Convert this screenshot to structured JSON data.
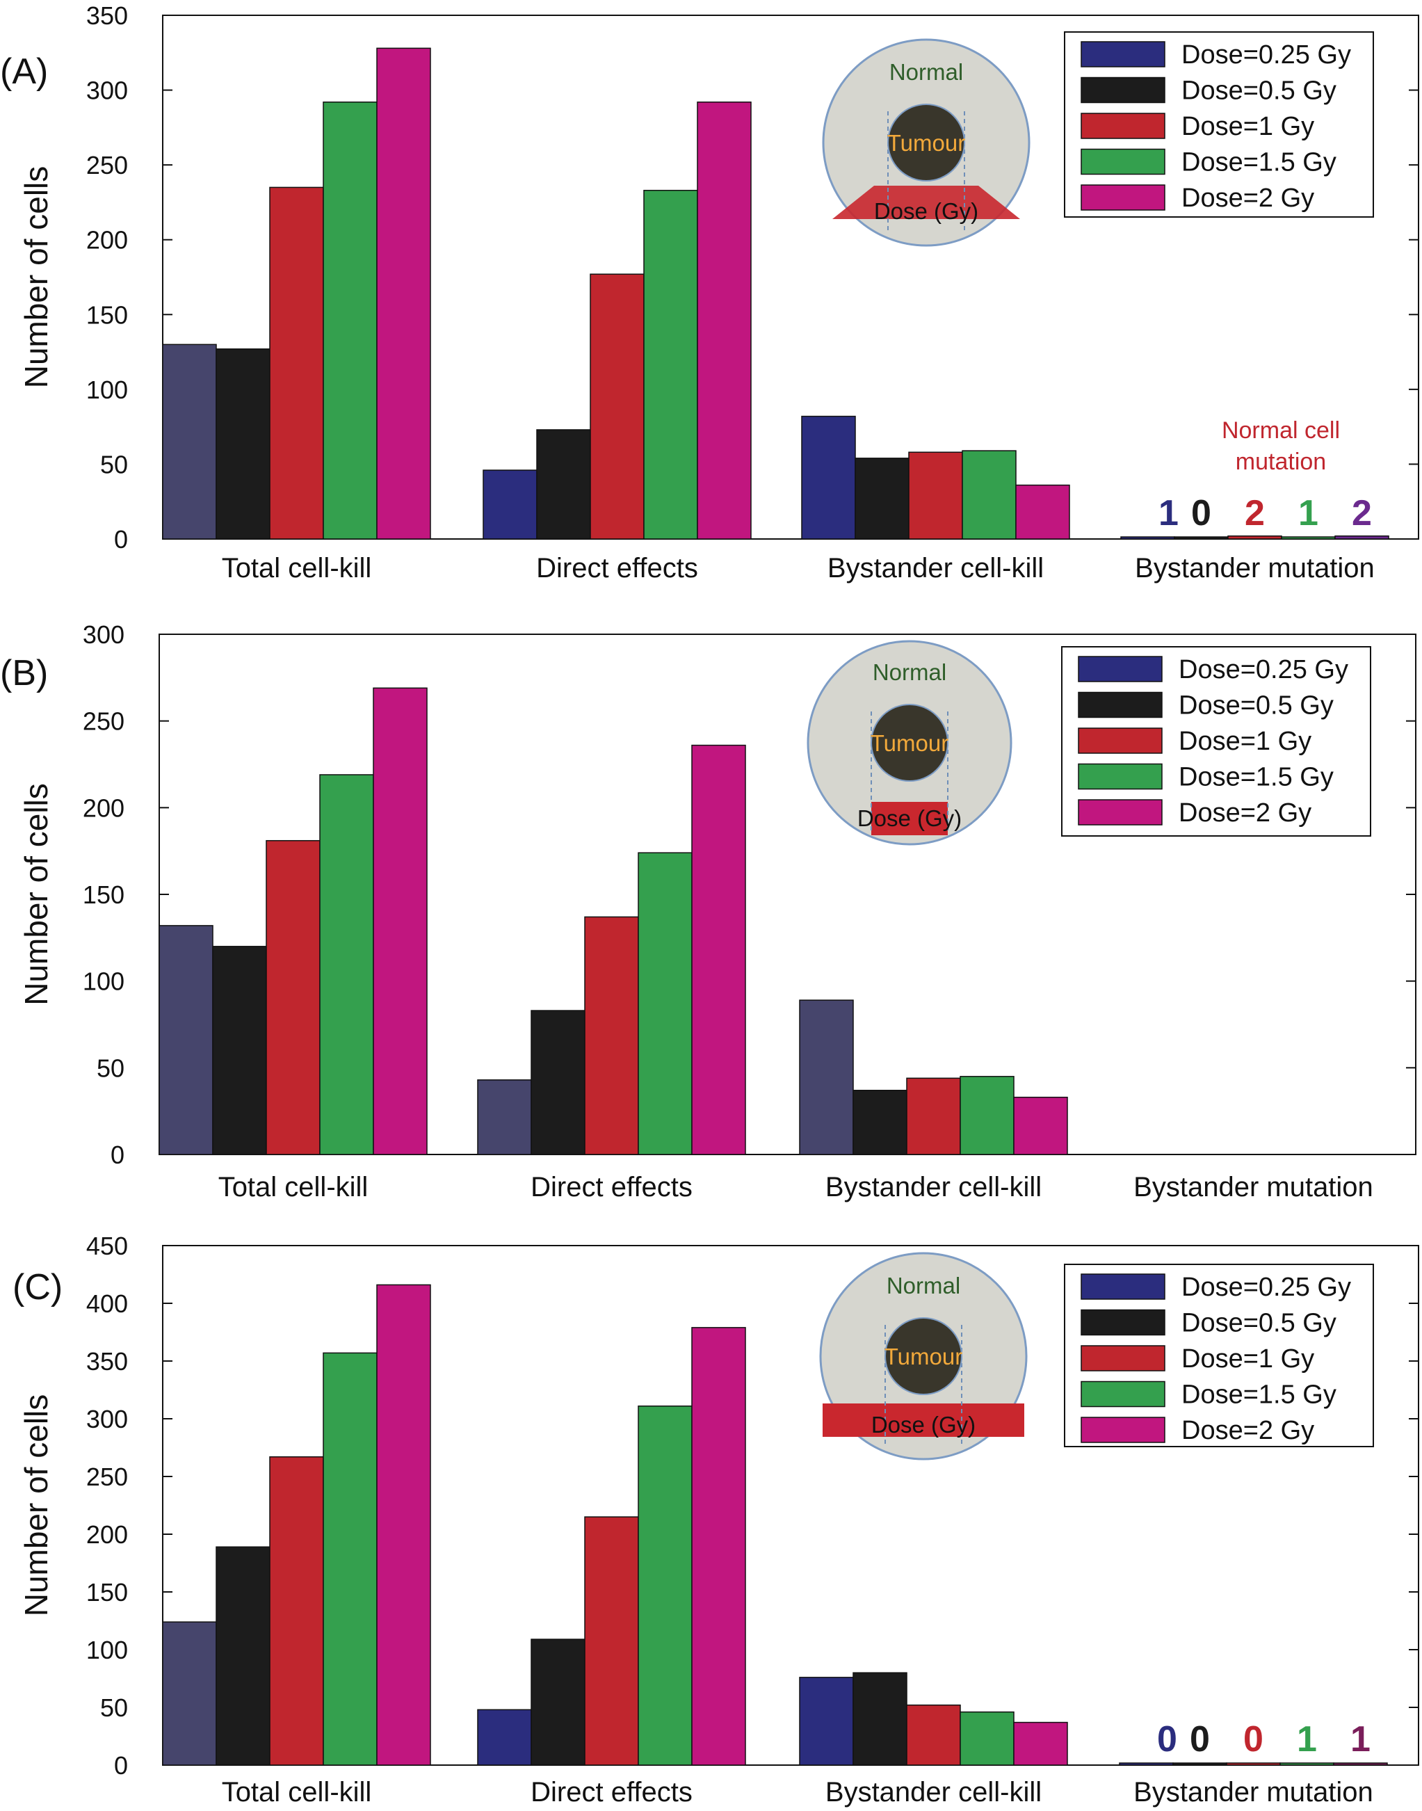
{
  "figure": {
    "legend_entries": [
      {
        "label": "Dose=0.25 Gy",
        "color": "#2b2d7e"
      },
      {
        "label": "Dose=0.5 Gy",
        "color": "#1c1c1c"
      },
      {
        "label": "Dose=1 Gy",
        "color": "#c0262e"
      },
      {
        "label": "Dose=1.5 Gy",
        "color": "#34a04e"
      },
      {
        "label": "Dose=2 Gy",
        "color": "#c1167f"
      }
    ],
    "inset_labels": {
      "normal": "Normal",
      "tumour": "Tumour",
      "dose": "Dose (Gy)"
    },
    "panels": [
      "A",
      "B",
      "C"
    ]
  },
  "chart_data": [
    {
      "panel": "(A)",
      "type": "bar",
      "ylabel": "Number of cells",
      "ylim": [
        0,
        350
      ],
      "yticks": [
        0,
        50,
        100,
        150,
        200,
        250,
        300,
        350
      ],
      "categories": [
        "Total cell-kill",
        "Direct effects",
        "Bystander cell-kill",
        "Bystander mutation"
      ],
      "series": [
        {
          "name": "Dose=0.25 Gy",
          "values": [
            130,
            46,
            82,
            1
          ],
          "colors": [
            "#46456c",
            "#2b2d7e",
            "#2b2d7e",
            "#2b2d7e"
          ]
        },
        {
          "name": "Dose=0.5 Gy",
          "values": [
            127,
            73,
            54,
            0
          ]
        },
        {
          "name": "Dose=1 Gy",
          "values": [
            235,
            177,
            58,
            2
          ]
        },
        {
          "name": "Dose=1.5 Gy",
          "values": [
            292,
            233,
            59,
            1
          ]
        },
        {
          "name": "Dose=2 Gy",
          "values": [
            328,
            292,
            36,
            2
          ],
          "mutation_color": "#6b2a8e"
        }
      ],
      "mutation_labels": [
        "1",
        "0",
        "2",
        "1",
        "2"
      ],
      "annotation": [
        "Normal cell",
        "mutation"
      ],
      "legend": "top-right",
      "grid": false
    },
    {
      "panel": "(B)",
      "type": "bar",
      "ylabel": "Number of cells",
      "ylim": [
        0,
        300
      ],
      "yticks": [
        0,
        50,
        100,
        150,
        200,
        250,
        300
      ],
      "categories": [
        "Total cell-kill",
        "Direct effects",
        "Bystander cell-kill",
        "Bystander mutation"
      ],
      "series": [
        {
          "name": "Dose=0.25 Gy",
          "values": [
            132,
            43,
            89,
            null
          ],
          "colors": [
            "#46456c",
            "#46456c",
            "#46456c",
            "#46456c"
          ]
        },
        {
          "name": "Dose=0.5 Gy",
          "values": [
            120,
            83,
            37,
            null
          ]
        },
        {
          "name": "Dose=1 Gy",
          "values": [
            181,
            137,
            44,
            null
          ]
        },
        {
          "name": "Dose=1.5 Gy",
          "values": [
            219,
            174,
            45,
            null
          ]
        },
        {
          "name": "Dose=2 Gy",
          "values": [
            269,
            236,
            33,
            null
          ]
        }
      ],
      "legend": "top-right",
      "grid": false
    },
    {
      "panel": "(C)",
      "type": "bar",
      "ylabel": "Number of cells",
      "ylim": [
        0,
        450
      ],
      "yticks": [
        0,
        50,
        100,
        150,
        200,
        250,
        300,
        350,
        400,
        450
      ],
      "categories": [
        "Total cell-kill",
        "Direct effects",
        "Bystander cell-kill",
        "Bystander mutation"
      ],
      "series": [
        {
          "name": "Dose=0.25 Gy",
          "values": [
            124,
            48,
            76,
            0
          ],
          "colors": [
            "#46456c",
            "#2b2d7e",
            "#2b2d7e",
            "#2b2d7e"
          ]
        },
        {
          "name": "Dose=0.5 Gy",
          "values": [
            189,
            109,
            80,
            0
          ]
        },
        {
          "name": "Dose=1 Gy",
          "values": [
            267,
            215,
            52,
            0
          ]
        },
        {
          "name": "Dose=1.5 Gy",
          "values": [
            357,
            311,
            46,
            1
          ]
        },
        {
          "name": "Dose=2 Gy",
          "values": [
            416,
            379,
            37,
            1
          ],
          "mutation_color": "#7a1e5a"
        }
      ],
      "mutation_labels": [
        "0",
        "0",
        "0",
        "1",
        "1"
      ],
      "legend": "top-right",
      "grid": false
    }
  ]
}
